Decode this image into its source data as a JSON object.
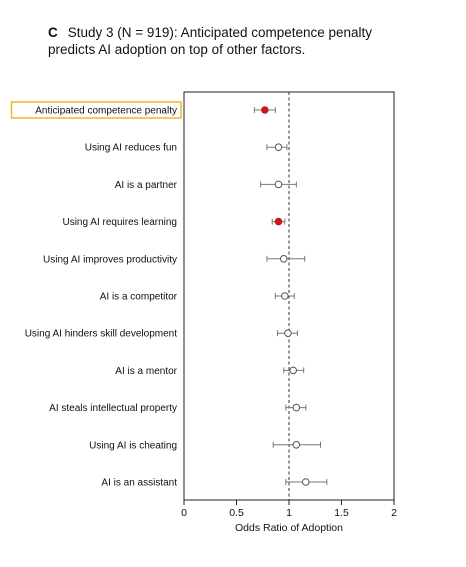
{
  "panel": {
    "letter": "C",
    "title_line1": "Study 3 (N = 919): Anticipated competence penalty",
    "title_line2": "predicts AI adoption on top of other factors."
  },
  "chart_data": {
    "type": "scatter",
    "subtype": "forest_plot",
    "xlabel": "Odds Ratio of Adoption",
    "ylabel": "",
    "xlim": [
      0,
      2
    ],
    "x_ticks": [
      "0",
      "0.5",
      "1",
      "1.5",
      "2"
    ],
    "x_tick_values": [
      0,
      0.5,
      1,
      1.5,
      2
    ],
    "reference_line": 1,
    "grid": false,
    "highlighted_label": "Anticipated competence penalty",
    "colors": {
      "significant": "#c8171e",
      "nonsignificant": "#ffffff",
      "marker_edge": "#555555",
      "errorbar": "#777777",
      "highlight_border": "#f2b52a"
    },
    "items": [
      {
        "label": "Anticipated competence penalty",
        "or": 0.77,
        "ci": [
          0.67,
          0.87
        ],
        "significant": true
      },
      {
        "label": "Using AI reduces fun",
        "or": 0.9,
        "ci": [
          0.79,
          0.98
        ],
        "significant": false
      },
      {
        "label": "AI is a partner",
        "or": 0.9,
        "ci": [
          0.73,
          1.07
        ],
        "significant": false
      },
      {
        "label": "Using AI requires learning",
        "or": 0.9,
        "ci": [
          0.84,
          0.96
        ],
        "significant": true
      },
      {
        "label": "Using AI improves productivity",
        "or": 0.95,
        "ci": [
          0.79,
          1.15
        ],
        "significant": false
      },
      {
        "label": "AI is a competitor",
        "or": 0.96,
        "ci": [
          0.87,
          1.05
        ],
        "significant": false
      },
      {
        "label": "Using AI hinders skill development",
        "or": 0.99,
        "ci": [
          0.89,
          1.08
        ],
        "significant": false
      },
      {
        "label": "AI is a mentor",
        "or": 1.04,
        "ci": [
          0.95,
          1.14
        ],
        "significant": false
      },
      {
        "label": "AI steals intellectual property",
        "or": 1.07,
        "ci": [
          0.97,
          1.16
        ],
        "significant": false
      },
      {
        "label": "Using AI is cheating",
        "or": 1.07,
        "ci": [
          0.85,
          1.3
        ],
        "significant": false
      },
      {
        "label": "AI is an assistant",
        "or": 1.16,
        "ci": [
          0.97,
          1.36
        ],
        "significant": false
      }
    ]
  }
}
